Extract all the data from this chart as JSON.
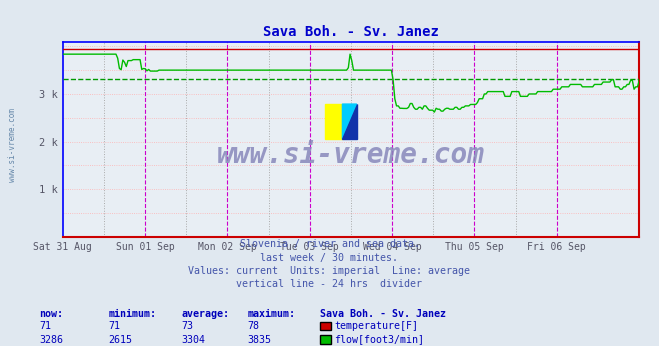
{
  "title": "Sava Boh. - Sv. Janez",
  "title_color": "#0000cc",
  "bg_color": "#e0e8f0",
  "plot_bg_color": "#e8eef4",
  "grid_h_color": "#ffb0b0",
  "grid_v_color": "#c0c0c0",
  "left_spine_color": "#0000ff",
  "top_spine_color": "#0000ff",
  "bottom_spine_color": "#cc0000",
  "right_spine_color": "#cc0000",
  "xticklabels": [
    "Sat 31 Aug",
    "Sun 01 Sep",
    "Mon 02 Sep",
    "Tue 03 Sep",
    "Wed 04 Sep",
    "Thu 05 Sep",
    "Fri 06 Sep"
  ],
  "ytick_labels": [
    "1 k",
    "2 k",
    "3 k"
  ],
  "ytick_values": [
    1000,
    2000,
    3000
  ],
  "ymin": 0,
  "ymax": 4100,
  "average_line_value": 3304,
  "average_line_color": "#009900",
  "flow_color": "#00bb00",
  "temp_color": "#cc0000",
  "watermark_text": "www.si-vreme.com",
  "watermark_color": "#8888bb",
  "left_label": "www.si-vreme.com",
  "left_label_color": "#6688aa",
  "subtitle_lines": [
    "Slovenia / river and sea data.",
    "last week / 30 minutes.",
    "Values: current  Units: imperial  Line: average",
    "vertical line - 24 hrs  divider"
  ],
  "subtitle_color": "#4455aa",
  "table_color": "#0000bb",
  "temp_now": 71,
  "temp_min": 71,
  "temp_avg": 73,
  "temp_max": 78,
  "flow_now": 3286,
  "flow_min": 2615,
  "flow_avg": 3304,
  "flow_max": 3835,
  "temp_label": "temperature[F]",
  "flow_label": "flow[foot3/min]",
  "magenta_vlines_x": [
    1,
    2,
    3,
    4,
    5,
    6
  ],
  "gray_vlines_x": [
    0.5,
    1.5,
    2.5,
    3.5,
    4.5,
    5.5
  ],
  "n_points": 336,
  "logo_yellow": "#ffff00",
  "logo_cyan": "#00ccff",
  "logo_blue": "#1133aa"
}
